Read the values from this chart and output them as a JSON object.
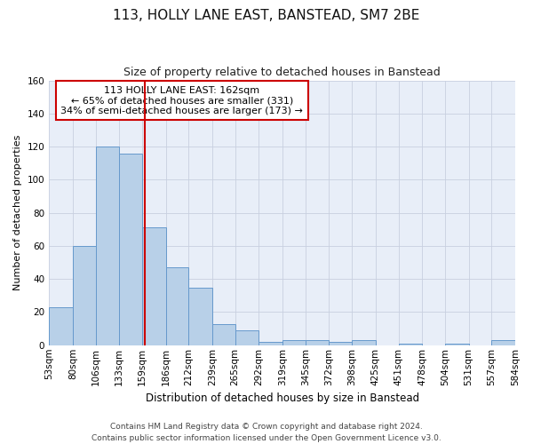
{
  "title": "113, HOLLY LANE EAST, BANSTEAD, SM7 2BE",
  "subtitle": "Size of property relative to detached houses in Banstead",
  "xlabel": "Distribution of detached houses by size in Banstead",
  "ylabel": "Number of detached properties",
  "footer_line1": "Contains HM Land Registry data © Crown copyright and database right 2024.",
  "footer_line2": "Contains public sector information licensed under the Open Government Licence v3.0.",
  "annotation_line1": "113 HOLLY LANE EAST: 162sqm",
  "annotation_line2": "← 65% of detached houses are smaller (331)",
  "annotation_line3": "34% of semi-detached houses are larger (173) →",
  "bin_edges": [
    53,
    80,
    106,
    133,
    159,
    186,
    212,
    239,
    265,
    292,
    319,
    345,
    372,
    398,
    425,
    451,
    478,
    504,
    531,
    557,
    584
  ],
  "bin_counts": [
    23,
    60,
    120,
    116,
    71,
    47,
    35,
    13,
    9,
    2,
    3,
    3,
    2,
    3,
    0,
    1,
    0,
    1,
    0,
    3
  ],
  "bar_color": "#b8d0e8",
  "bar_edge_color": "#6699cc",
  "redline_x": 162,
  "redline_color": "#cc0000",
  "annotation_box_edge_color": "#cc0000",
  "figure_bg": "#ffffff",
  "axes_bg": "#e8eef8",
  "grid_color": "#c8d0e0",
  "ylim": [
    0,
    160
  ],
  "yticks": [
    0,
    20,
    40,
    60,
    80,
    100,
    120,
    140,
    160
  ],
  "title_fontsize": 11,
  "subtitle_fontsize": 9,
  "ylabel_fontsize": 8,
  "xlabel_fontsize": 8.5,
  "tick_fontsize": 7.5,
  "annotation_fontsize": 8,
  "footer_fontsize": 6.5
}
